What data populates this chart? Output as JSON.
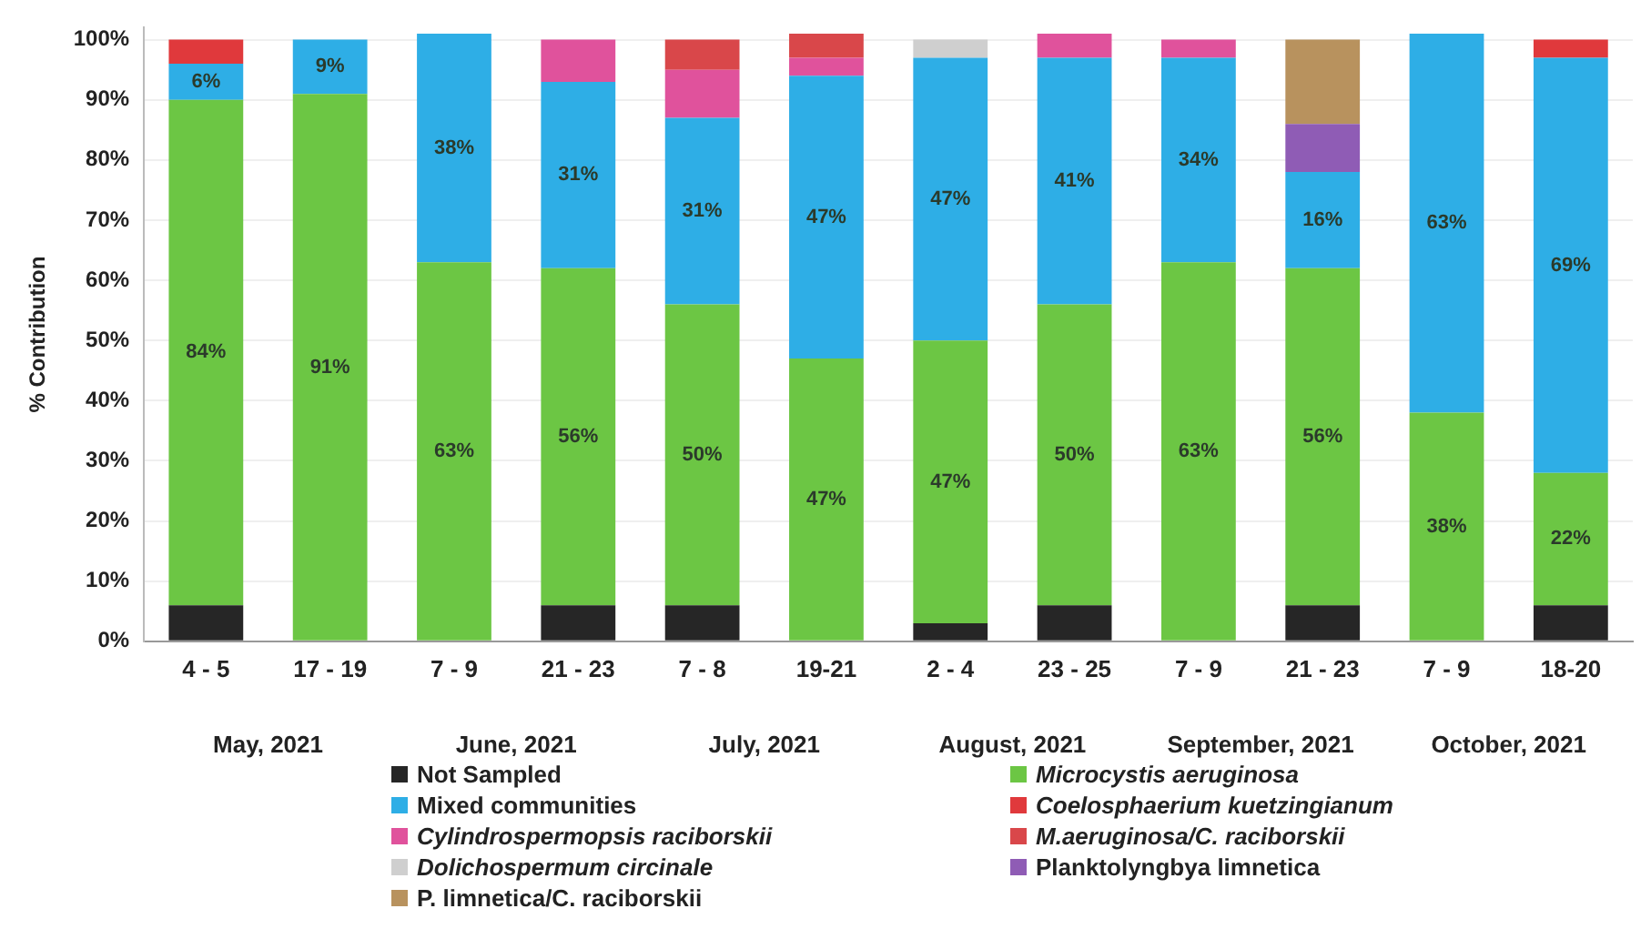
{
  "chart_data": {
    "type": "bar",
    "stacked": true,
    "ylabel": "% Contribution",
    "categories": [
      "4 - 5",
      "17 - 19",
      "7 - 9",
      "21 - 23",
      "7 - 8",
      "19-21",
      "2 - 4",
      "23 - 25",
      "7 - 9",
      "21 - 23",
      "7 - 9",
      "18-20"
    ],
    "annotations": [
      "May, 2021",
      "June, 2021",
      "July, 2021",
      "August, 2021",
      "September, 2021",
      "October, 2021"
    ],
    "series": [
      {
        "name": "Not Sampled",
        "color": "#262626",
        "values": [
          6,
          null,
          null,
          6,
          6,
          null,
          3,
          6,
          null,
          6,
          null,
          6
        ]
      },
      {
        "name": "Microcystis aeruginosa",
        "color": "#6cc644",
        "values": [
          84,
          91,
          63,
          56,
          50,
          47,
          47,
          50,
          63,
          56,
          38,
          22
        ],
        "value_labels": [
          "84%",
          "91%",
          "63%",
          "56%",
          "50%",
          "47%",
          "47%",
          "50%",
          "63%",
          "56%",
          "38%",
          "22%"
        ]
      },
      {
        "name": "Mixed communities",
        "color": "#2eaee6",
        "values": [
          6,
          9,
          38,
          31,
          31,
          47,
          47,
          41,
          34,
          16,
          63,
          69
        ],
        "value_labels": [
          "6%",
          "9%",
          "38%",
          "31%",
          "31%",
          "47%",
          "47%",
          "41%",
          "34%",
          "16%",
          "63%",
          "69%"
        ]
      },
      {
        "name": "Coelosphaerium kuetzingianum",
        "color": "#e0393c",
        "values": [
          4,
          null,
          null,
          null,
          null,
          null,
          null,
          null,
          null,
          null,
          null,
          3
        ]
      },
      {
        "name": "Cylindrospermopsis raciborskii",
        "color": "#e0529c",
        "values": [
          null,
          null,
          null,
          7,
          8,
          3,
          null,
          4,
          3,
          null,
          null,
          null
        ]
      },
      {
        "name": "M.aeruginosa/C. raciborskii",
        "color": "#d9474a",
        "values": [
          null,
          null,
          null,
          null,
          5,
          4,
          null,
          null,
          null,
          null,
          null,
          null
        ]
      },
      {
        "name": "Dolichospermum circinale",
        "color": "#cfcfcf",
        "values": [
          null,
          null,
          null,
          null,
          null,
          null,
          3,
          null,
          null,
          null,
          null,
          null
        ]
      },
      {
        "name": "Planktolyngbya limnetica",
        "color": "#8f5cb5",
        "values": [
          null,
          null,
          null,
          null,
          null,
          null,
          null,
          null,
          null,
          8,
          null,
          null
        ]
      },
      {
        "name": "P. limnetica/C. raciborskii",
        "color": "#b8925e",
        "values": [
          null,
          null,
          null,
          null,
          null,
          null,
          null,
          null,
          null,
          14,
          null,
          null
        ]
      }
    ],
    "ylim": [
      0,
      102
    ],
    "yticks": [
      {
        "value": 0,
        "label": "0%"
      },
      {
        "value": 10,
        "label": "10%"
      },
      {
        "value": 20,
        "label": "20%"
      },
      {
        "value": 30,
        "label": "30%"
      },
      {
        "value": 40,
        "label": "40%"
      },
      {
        "value": 50,
        "label": "50%"
      },
      {
        "value": 60,
        "label": "60%"
      },
      {
        "value": 70,
        "label": "70%"
      },
      {
        "value": 80,
        "label": "80%"
      },
      {
        "value": 90,
        "label": "90%"
      },
      {
        "value": 100,
        "label": "100%"
      }
    ],
    "grid": "y",
    "legend": "bottom"
  }
}
